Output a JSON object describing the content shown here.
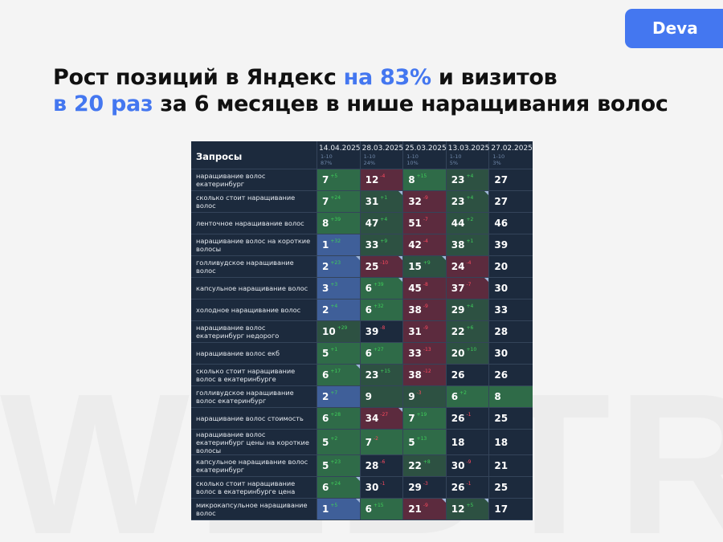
{
  "watermark": "WEBTR",
  "brand": {
    "label": "Deva",
    "color": "#4477f0"
  },
  "headline": {
    "line1_a": "Рост позиций в Яндекс ",
    "line1_accent": "на 83%",
    "line1_b": " и визитов",
    "line2_accent": "в 20 раз",
    "line2_b": " за 6 месяцев в нише наращивания волос"
  },
  "table": {
    "query_header": "Запросы",
    "columns": [
      {
        "date": "14.04.2025",
        "range": "1-10",
        "pct": "87%"
      },
      {
        "date": "28.03.2025",
        "range": "1-10",
        "pct": "24%"
      },
      {
        "date": "25.03.2025",
        "range": "1-10",
        "pct": "10%"
      },
      {
        "date": "13.03.2025",
        "range": "1-10",
        "pct": "5%"
      },
      {
        "date": "27.02.2025",
        "range": "1-10",
        "pct": "3%"
      }
    ],
    "rows": [
      {
        "query": "наращивание волос екатеринбург",
        "cells": [
          {
            "v": "7",
            "d": "+5",
            "dir": "up",
            "c": "green"
          },
          {
            "v": "12",
            "d": "-4",
            "dir": "down",
            "c": "red"
          },
          {
            "v": "8",
            "d": "+15",
            "dir": "up",
            "c": "green"
          },
          {
            "v": "23",
            "d": "+4",
            "dir": "up",
            "c": "dgreen"
          },
          {
            "v": "27",
            "d": "",
            "dir": "",
            "c": "none"
          }
        ]
      },
      {
        "query": "сколько стоит наращивание волос",
        "cells": [
          {
            "v": "7",
            "d": "+24",
            "dir": "up",
            "c": "green"
          },
          {
            "v": "31",
            "d": "+1",
            "dir": "up",
            "c": "dgreen",
            "flag": true
          },
          {
            "v": "32",
            "d": "-9",
            "dir": "down",
            "c": "red"
          },
          {
            "v": "23",
            "d": "+4",
            "dir": "up",
            "c": "dgreen",
            "flag": true
          },
          {
            "v": "27",
            "d": "",
            "dir": "",
            "c": "none"
          }
        ]
      },
      {
        "query": "ленточное наращивание волос",
        "cells": [
          {
            "v": "8",
            "d": "+39",
            "dir": "up",
            "c": "green"
          },
          {
            "v": "47",
            "d": "+4",
            "dir": "up",
            "c": "dgreen"
          },
          {
            "v": "51",
            "d": "-7",
            "dir": "down",
            "c": "red"
          },
          {
            "v": "44",
            "d": "+2",
            "dir": "up",
            "c": "dgreen"
          },
          {
            "v": "46",
            "d": "",
            "dir": "",
            "c": "none"
          }
        ]
      },
      {
        "query": "наращивание волос на короткие волосы",
        "cells": [
          {
            "v": "1",
            "d": "+32",
            "dir": "up",
            "c": "blue"
          },
          {
            "v": "33",
            "d": "+9",
            "dir": "up",
            "c": "dgreen"
          },
          {
            "v": "42",
            "d": "-4",
            "dir": "down",
            "c": "red"
          },
          {
            "v": "38",
            "d": "+1",
            "dir": "up",
            "c": "dgreen"
          },
          {
            "v": "39",
            "d": "",
            "dir": "",
            "c": "none"
          }
        ]
      },
      {
        "query": "голливудское наращивание волос",
        "cells": [
          {
            "v": "2",
            "d": "+23",
            "dir": "up",
            "c": "blue",
            "flag": true
          },
          {
            "v": "25",
            "d": "-10",
            "dir": "down",
            "c": "red",
            "flag": true
          },
          {
            "v": "15",
            "d": "+9",
            "dir": "up",
            "c": "dgreen",
            "flag": true
          },
          {
            "v": "24",
            "d": "-4",
            "dir": "down",
            "c": "red"
          },
          {
            "v": "20",
            "d": "",
            "dir": "",
            "c": "none"
          }
        ]
      },
      {
        "query": "капсульное наращивание волос",
        "cells": [
          {
            "v": "3",
            "d": "+3",
            "dir": "up",
            "c": "blue"
          },
          {
            "v": "6",
            "d": "+39",
            "dir": "up",
            "c": "green",
            "flag": true
          },
          {
            "v": "45",
            "d": "-8",
            "dir": "down",
            "c": "red"
          },
          {
            "v": "37",
            "d": "-7",
            "dir": "down",
            "c": "red",
            "flag": true
          },
          {
            "v": "30",
            "d": "",
            "dir": "",
            "c": "none"
          }
        ]
      },
      {
        "query": "холодное наращивание волос",
        "cells": [
          {
            "v": "2",
            "d": "+4",
            "dir": "up",
            "c": "blue"
          },
          {
            "v": "6",
            "d": "+32",
            "dir": "up",
            "c": "green"
          },
          {
            "v": "38",
            "d": "-9",
            "dir": "down",
            "c": "red"
          },
          {
            "v": "29",
            "d": "+4",
            "dir": "up",
            "c": "dgreen"
          },
          {
            "v": "33",
            "d": "",
            "dir": "",
            "c": "none"
          }
        ]
      },
      {
        "query": "наращивание волос екатеринбург недорого",
        "cells": [
          {
            "v": "10",
            "d": "+29",
            "dir": "up",
            "c": "dgreen"
          },
          {
            "v": "39",
            "d": "-8",
            "dir": "down",
            "c": "none"
          },
          {
            "v": "31",
            "d": "-9",
            "dir": "down",
            "c": "red"
          },
          {
            "v": "22",
            "d": "+6",
            "dir": "up",
            "c": "dgreen"
          },
          {
            "v": "28",
            "d": "",
            "dir": "",
            "c": "none"
          }
        ]
      },
      {
        "query": "наращивание волос екб",
        "cells": [
          {
            "v": "5",
            "d": "+1",
            "dir": "up",
            "c": "green"
          },
          {
            "v": "6",
            "d": "+27",
            "dir": "up",
            "c": "green"
          },
          {
            "v": "33",
            "d": "-13",
            "dir": "down",
            "c": "red"
          },
          {
            "v": "20",
            "d": "+10",
            "dir": "up",
            "c": "dgreen"
          },
          {
            "v": "30",
            "d": "",
            "dir": "",
            "c": "none"
          }
        ]
      },
      {
        "query": "сколько стоит наращивание волос в екатеринбурге",
        "cells": [
          {
            "v": "6",
            "d": "+17",
            "dir": "up",
            "c": "green",
            "flag": true
          },
          {
            "v": "23",
            "d": "+15",
            "dir": "up",
            "c": "dgreen"
          },
          {
            "v": "38",
            "d": "-12",
            "dir": "down",
            "c": "red"
          },
          {
            "v": "26",
            "d": "",
            "dir": "",
            "c": "none"
          },
          {
            "v": "26",
            "d": "",
            "dir": "",
            "c": "none"
          }
        ]
      },
      {
        "query": "голливудское наращивание волос екатеринбург",
        "cells": [
          {
            "v": "2",
            "d": "+7",
            "dir": "up",
            "c": "blue"
          },
          {
            "v": "9",
            "d": "",
            "dir": "",
            "c": "dgreen"
          },
          {
            "v": "9",
            "d": "-3",
            "dir": "down",
            "c": "dgreen"
          },
          {
            "v": "6",
            "d": "+2",
            "dir": "up",
            "c": "green"
          },
          {
            "v": "8",
            "d": "",
            "dir": "",
            "c": "green"
          }
        ]
      },
      {
        "query": "наращивание волос стоимость",
        "cells": [
          {
            "v": "6",
            "d": "+28",
            "dir": "up",
            "c": "green"
          },
          {
            "v": "34",
            "d": "-27",
            "dir": "down",
            "c": "red",
            "flag": true
          },
          {
            "v": "7",
            "d": "+19",
            "dir": "up",
            "c": "green"
          },
          {
            "v": "26",
            "d": "-1",
            "dir": "down",
            "c": "none"
          },
          {
            "v": "25",
            "d": "",
            "dir": "",
            "c": "none"
          }
        ]
      },
      {
        "query": "наращивание волос екатеринбург цены на короткие волосы",
        "cells": [
          {
            "v": "5",
            "d": "+2",
            "dir": "up",
            "c": "green"
          },
          {
            "v": "7",
            "d": "-2",
            "dir": "down",
            "c": "green"
          },
          {
            "v": "5",
            "d": "+13",
            "dir": "up",
            "c": "green"
          },
          {
            "v": "18",
            "d": "",
            "dir": "",
            "c": "none"
          },
          {
            "v": "18",
            "d": "",
            "dir": "",
            "c": "none"
          }
        ]
      },
      {
        "query": "капсульное наращивание волос екатеринбург",
        "cells": [
          {
            "v": "5",
            "d": "+23",
            "dir": "up",
            "c": "green"
          },
          {
            "v": "28",
            "d": "-6",
            "dir": "down",
            "c": "none"
          },
          {
            "v": "22",
            "d": "+8",
            "dir": "up",
            "c": "dgreen"
          },
          {
            "v": "30",
            "d": "-9",
            "dir": "down",
            "c": "none"
          },
          {
            "v": "21",
            "d": "",
            "dir": "",
            "c": "none"
          }
        ]
      },
      {
        "query": "сколько стоит наращивание волос в екатеринбурге цена",
        "cells": [
          {
            "v": "6",
            "d": "+24",
            "dir": "up",
            "c": "green",
            "flag": true
          },
          {
            "v": "30",
            "d": "-1",
            "dir": "down",
            "c": "none"
          },
          {
            "v": "29",
            "d": "-3",
            "dir": "down",
            "c": "none"
          },
          {
            "v": "26",
            "d": "-1",
            "dir": "down",
            "c": "none"
          },
          {
            "v": "25",
            "d": "",
            "dir": "",
            "c": "none"
          }
        ]
      },
      {
        "query": "микрокапсульное наращивание волос",
        "cells": [
          {
            "v": "1",
            "d": "+5",
            "dir": "up",
            "c": "blue",
            "flag": true
          },
          {
            "v": "6",
            "d": "+15",
            "dir": "up",
            "c": "green"
          },
          {
            "v": "21",
            "d": "-9",
            "dir": "down",
            "c": "red",
            "flag": true
          },
          {
            "v": "12",
            "d": "+5",
            "dir": "up",
            "c": "dgreen",
            "flag": true
          },
          {
            "v": "17",
            "d": "",
            "dir": "",
            "c": "none"
          }
        ]
      }
    ]
  }
}
